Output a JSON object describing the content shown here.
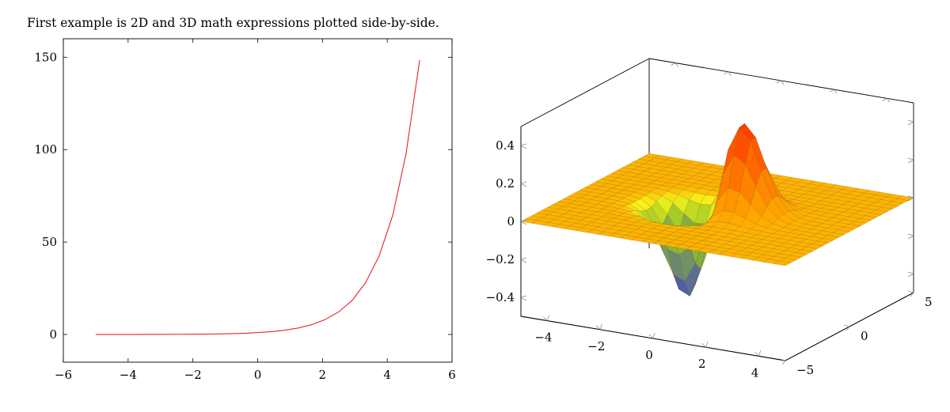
{
  "caption": "First example is 2D and 3D math expressions plotted side-by-side.",
  "chart_data": [
    {
      "type": "line",
      "title": "",
      "xlabel": "",
      "ylabel": "",
      "xlim": [
        -6,
        6
      ],
      "ylim": [
        -15,
        160
      ],
      "xticks": [
        -6,
        -4,
        -2,
        0,
        2,
        4,
        6
      ],
      "yticks": [
        0,
        50,
        100,
        150
      ],
      "xtick_labels": [
        "−6",
        "−4",
        "−2",
        "0",
        "2",
        "4",
        "6"
      ],
      "ytick_labels": [
        "0",
        "50",
        "100",
        "150"
      ],
      "grid": false,
      "series": [
        {
          "color": "#e8212b",
          "x": [
            -5,
            -4.58,
            -4.17,
            -3.75,
            -3.33,
            -2.92,
            -2.5,
            -2.08,
            -1.67,
            -1.25,
            -0.83,
            -0.42,
            0,
            0.42,
            0.83,
            1.25,
            1.67,
            2.08,
            2.5,
            2.92,
            3.33,
            3.75,
            4.17,
            4.58,
            5
          ],
          "y": [
            0.0067,
            0.0102,
            0.0155,
            0.0235,
            0.0357,
            0.0541,
            0.0821,
            0.125,
            0.189,
            0.287,
            0.435,
            0.659,
            1,
            1.52,
            2.3,
            3.49,
            5.29,
            8.03,
            12.18,
            18.5,
            28.0,
            42.5,
            64.5,
            97.8,
            148.4
          ]
        }
      ]
    },
    {
      "type": "surface",
      "title": "",
      "xlabel": "",
      "ylabel": "",
      "zlabel": "",
      "xlim": [
        -5,
        5
      ],
      "ylim": [
        -5,
        5
      ],
      "zlim": [
        -0.5,
        0.5
      ],
      "xticks": [
        -4,
        -2,
        0,
        2,
        4
      ],
      "yticks": [
        -5,
        0,
        5
      ],
      "zticks": [
        -0.4,
        -0.2,
        0,
        0.2,
        0.4
      ],
      "xtick_labels": [
        "−4",
        "−2",
        "0",
        "2",
        "4"
      ],
      "ytick_labels": [
        "−5",
        "0",
        "5"
      ],
      "ztick_labels": [
        "−0.4",
        "−0.2",
        "0",
        "0.2",
        "0.4"
      ],
      "grid_samples": 25,
      "colormap": [
        "#3a3ad6",
        "#8fbf2a",
        "#f5f51a",
        "#ffb300",
        "#ff2a00"
      ],
      "surface_peaks": [
        {
          "sign": "positive",
          "x": 0.8,
          "y": 0.2,
          "z_max": 0.5
        },
        {
          "sign": "negative",
          "x": -0.9,
          "y": -0.3,
          "z_min": -0.5
        }
      ]
    }
  ]
}
